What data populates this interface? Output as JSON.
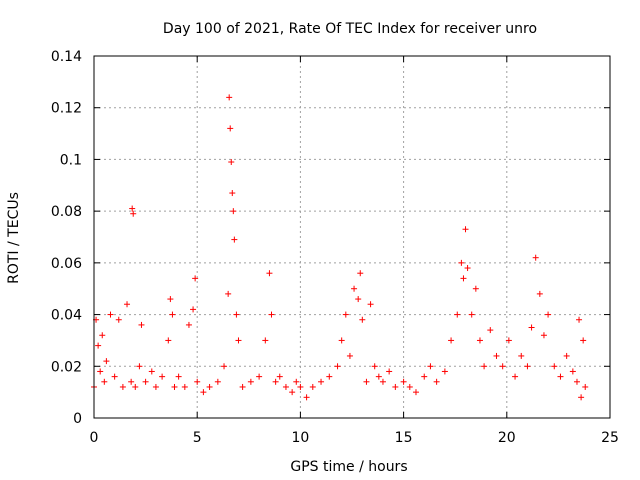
{
  "chart_data": {
    "type": "scatter",
    "title": "Day 100 of 2021, Rate Of TEC Index for receiver unro",
    "xlabel": "GPS time / hours",
    "ylabel": "ROTI / TECUs",
    "xlim": [
      0,
      25
    ],
    "ylim": [
      0,
      0.14
    ],
    "x_ticks": [
      "0",
      "5",
      "10",
      "15",
      "20",
      "25"
    ],
    "y_ticks": [
      "0",
      "0.02",
      "0.04",
      "0.06",
      "0.08",
      "0.1",
      "0.12",
      "0.14"
    ],
    "grid": true,
    "marker": "+",
    "color": "#ff0000",
    "series": [
      {
        "x": [
          0.0,
          0.1,
          0.2,
          0.3,
          0.4,
          0.5,
          0.6,
          0.8,
          1.0,
          1.2,
          1.4,
          1.6,
          1.8,
          1.85,
          1.9,
          2.0,
          2.2,
          2.3,
          2.5,
          2.8,
          3.0,
          3.3,
          3.6,
          3.7,
          3.8,
          3.9,
          4.1,
          4.4,
          4.6,
          4.8,
          4.9,
          5.0,
          5.3,
          5.6,
          6.0,
          6.3,
          6.5,
          6.55,
          6.6,
          6.65,
          6.7,
          6.75,
          6.8,
          6.9,
          7.0,
          7.2,
          7.6,
          8.0,
          8.3,
          8.5,
          8.6,
          8.8,
          9.0,
          9.3,
          9.6,
          9.8,
          10.0,
          10.3,
          10.6,
          11.0,
          11.4,
          11.8,
          12.0,
          12.2,
          12.4,
          12.6,
          12.8,
          12.9,
          13.0,
          13.2,
          13.4,
          13.6,
          13.8,
          14.0,
          14.3,
          14.6,
          15.0,
          15.3,
          15.6,
          16.0,
          16.3,
          16.6,
          17.0,
          17.3,
          17.6,
          17.8,
          17.9,
          18.0,
          18.1,
          18.3,
          18.5,
          18.7,
          18.9,
          19.2,
          19.5,
          19.8,
          20.1,
          20.4,
          20.7,
          21.0,
          21.2,
          21.4,
          21.6,
          21.8,
          22.0,
          22.3,
          22.6,
          22.9,
          23.2,
          23.4,
          23.5,
          23.6,
          23.7,
          23.8
        ],
        "y": [
          0.012,
          0.038,
          0.028,
          0.018,
          0.032,
          0.014,
          0.022,
          0.04,
          0.016,
          0.038,
          0.012,
          0.044,
          0.014,
          0.081,
          0.079,
          0.012,
          0.02,
          0.036,
          0.014,
          0.018,
          0.012,
          0.016,
          0.03,
          0.046,
          0.04,
          0.012,
          0.016,
          0.012,
          0.036,
          0.042,
          0.054,
          0.014,
          0.01,
          0.012,
          0.014,
          0.02,
          0.048,
          0.124,
          0.112,
          0.099,
          0.087,
          0.08,
          0.069,
          0.04,
          0.03,
          0.012,
          0.014,
          0.016,
          0.03,
          0.056,
          0.04,
          0.014,
          0.016,
          0.012,
          0.01,
          0.014,
          0.012,
          0.008,
          0.012,
          0.014,
          0.016,
          0.02,
          0.03,
          0.04,
          0.024,
          0.05,
          0.046,
          0.056,
          0.038,
          0.014,
          0.044,
          0.02,
          0.016,
          0.014,
          0.018,
          0.012,
          0.014,
          0.012,
          0.01,
          0.016,
          0.02,
          0.014,
          0.018,
          0.03,
          0.04,
          0.06,
          0.054,
          0.073,
          0.058,
          0.04,
          0.05,
          0.03,
          0.02,
          0.034,
          0.024,
          0.02,
          0.03,
          0.016,
          0.024,
          0.02,
          0.035,
          0.062,
          0.048,
          0.032,
          0.04,
          0.02,
          0.016,
          0.024,
          0.018,
          0.014,
          0.038,
          0.008,
          0.03,
          0.012
        ]
      }
    ]
  }
}
